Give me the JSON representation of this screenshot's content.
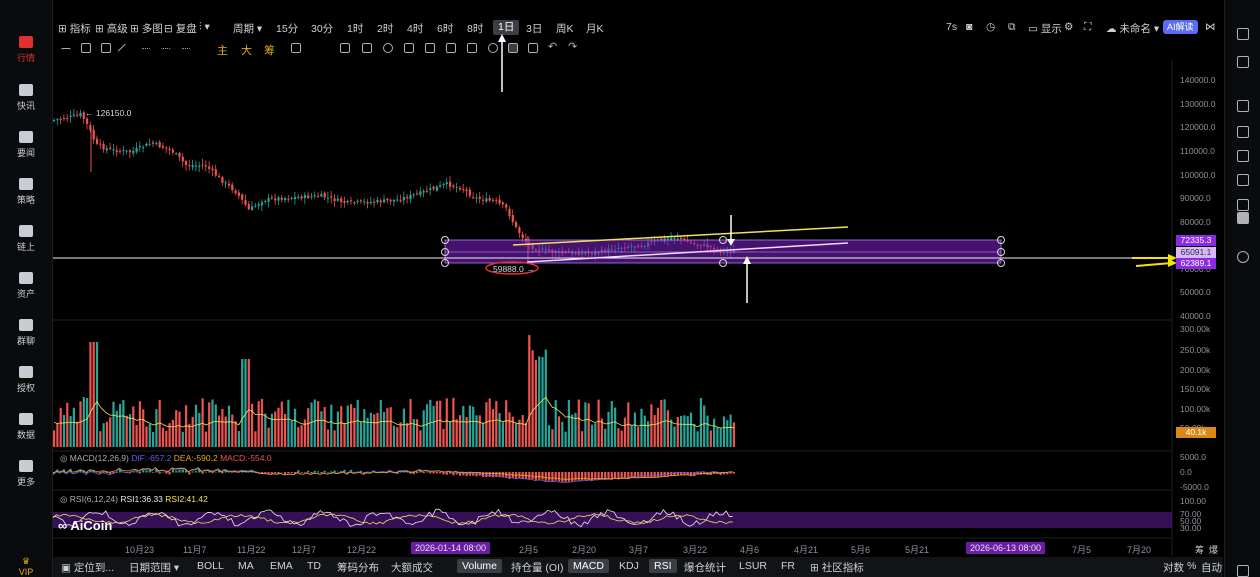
{
  "sidebar": {
    "items": [
      {
        "label": "行情",
        "icon": "chart-bars-icon",
        "active": true
      },
      {
        "label": "快讯",
        "icon": "lightning-icon"
      },
      {
        "label": "要闻",
        "icon": "news-icon"
      },
      {
        "label": "策略",
        "icon": "robot-icon"
      },
      {
        "label": "链上",
        "icon": "chain-icon"
      },
      {
        "label": "资产",
        "icon": "wallet-icon"
      },
      {
        "label": "群聊",
        "icon": "chat-icon"
      },
      {
        "label": "授权",
        "icon": "key-icon"
      },
      {
        "label": "数据",
        "icon": "monitor-icon"
      },
      {
        "label": "更多",
        "icon": "grid-icon"
      }
    ],
    "vip": "VIP"
  },
  "toolbar": {
    "indicators": "指标",
    "advanced": "高级",
    "multi": "多图",
    "rebase": "复盘",
    "period": "周期",
    "intervals": [
      "15分",
      "30分",
      "1时",
      "2时",
      "4时",
      "6时",
      "8时",
      "1日",
      "3日",
      "周K",
      "月K"
    ],
    "selected_interval": "1日",
    "countdown": "7s",
    "display": "显示",
    "username": "未命名",
    "ai": "AI解读"
  },
  "toolbar2": {
    "main": "主",
    "big": "大",
    "chip": "筹"
  },
  "price_axis": [
    "140000.0",
    "130000.0",
    "120000.0",
    "110000.0",
    "100000.0",
    "90000.0",
    "80000.0",
    "70000.0",
    "60000.0",
    "50000.0",
    "40000.0"
  ],
  "price_tags": {
    "upper": "72335.3",
    "mid": "65091.1",
    "lower": "62389.1",
    "volume": "40.1k"
  },
  "annotations": {
    "high": "126150.0",
    "low": "59888.0"
  },
  "volume_axis": [
    "300.00k",
    "250.00k",
    "200.00k",
    "150.00k",
    "100.00k",
    "50.00k"
  ],
  "macd": {
    "label": "MACD(12,26,9)",
    "dif": "DIF:-657.2",
    "dea": "DEA:-590.2",
    "macd": "MACD:-554.0",
    "axis": [
      "5000.0",
      "0.0",
      "-5000.0"
    ]
  },
  "rsi": {
    "label": "RSI(6,12,24)",
    "rsi1": "RSI1:36.33",
    "rsi2": "RSI2:41.42",
    "axis": [
      "100.00",
      "70.00",
      "50.00",
      "30.00"
    ]
  },
  "watermark": "AiCoin",
  "x_axis": [
    "10月23",
    "11月7",
    "11月22",
    "12月7",
    "12月22",
    "2月5",
    "2月20",
    "3月7",
    "3月22",
    "4月6",
    "4月21",
    "5月6",
    "5月21",
    "7月5",
    "7月20"
  ],
  "x_highlights": [
    "2026-01-14 08:00",
    "2026-06-13 08:00"
  ],
  "x_axis_right": [
    "筹",
    "爆"
  ],
  "bottom_bar": {
    "locate": "定位到...",
    "range": "日期范围",
    "items": [
      "BOLL",
      "MA",
      "EMA",
      "TD",
      "筹码分布",
      "大额成交",
      "Volume",
      "持仓量 (OI)",
      "MACD",
      "KDJ",
      "RSI",
      "爆仓统计",
      "LSUR",
      "FR",
      "社区指标"
    ],
    "selected": [
      "Volume",
      "MACD",
      "RSI"
    ],
    "right": [
      "对数",
      "%",
      "自动"
    ]
  },
  "colors": {
    "up": "#26a69a",
    "down": "#ef5350",
    "purple": "#8a2be2",
    "yellow": "#f1e05a",
    "bg": "#000000"
  }
}
